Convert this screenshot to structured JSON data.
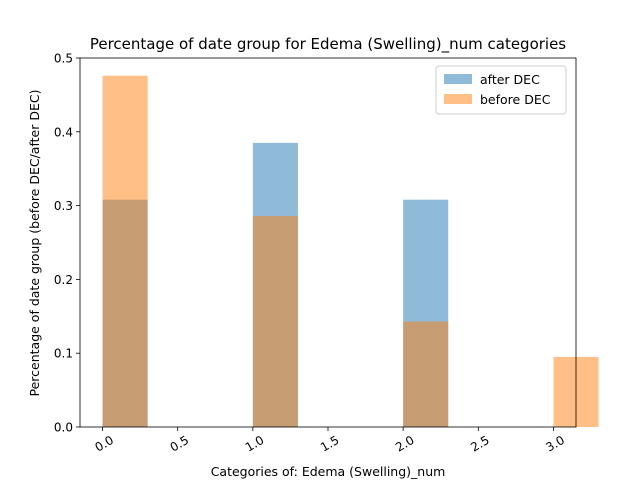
{
  "chart_data": {
    "type": "bar",
    "title": "Percentage of date group for Edema (Swelling)_num categories",
    "xlabel": "Categories of: Edema (Swelling)_num",
    "ylabel": "Percentage of date group (before DEC/after DEC)",
    "xlim": [
      -0.15,
      3.15
    ],
    "ylim": [
      0,
      0.5
    ],
    "xticks": [
      0.0,
      0.5,
      1.0,
      1.5,
      2.0,
      2.5,
      3.0
    ],
    "xtick_labels": [
      "0.0",
      "0.5",
      "1.0",
      "1.5",
      "2.0",
      "2.5",
      "3.0"
    ],
    "yticks": [
      0.0,
      0.1,
      0.2,
      0.3,
      0.4,
      0.5
    ],
    "ytick_labels": [
      "0.0",
      "0.1",
      "0.2",
      "0.3",
      "0.4",
      "0.5"
    ],
    "bar_width": 0.3,
    "series": [
      {
        "name": "after DEC",
        "color": "#1f77b4",
        "opacity": 0.5,
        "x": [
          0.0,
          1.0,
          2.0
        ],
        "values": [
          0.308,
          0.385,
          0.308
        ]
      },
      {
        "name": "before DEC",
        "color": "#ff7f0e",
        "opacity": 0.5,
        "x": [
          0.0,
          1.0,
          2.0,
          3.0
        ],
        "values": [
          0.476,
          0.286,
          0.143,
          0.095
        ]
      }
    ],
    "legend": {
      "position": "top-right",
      "entries": [
        "after DEC",
        "before DEC"
      ]
    }
  }
}
